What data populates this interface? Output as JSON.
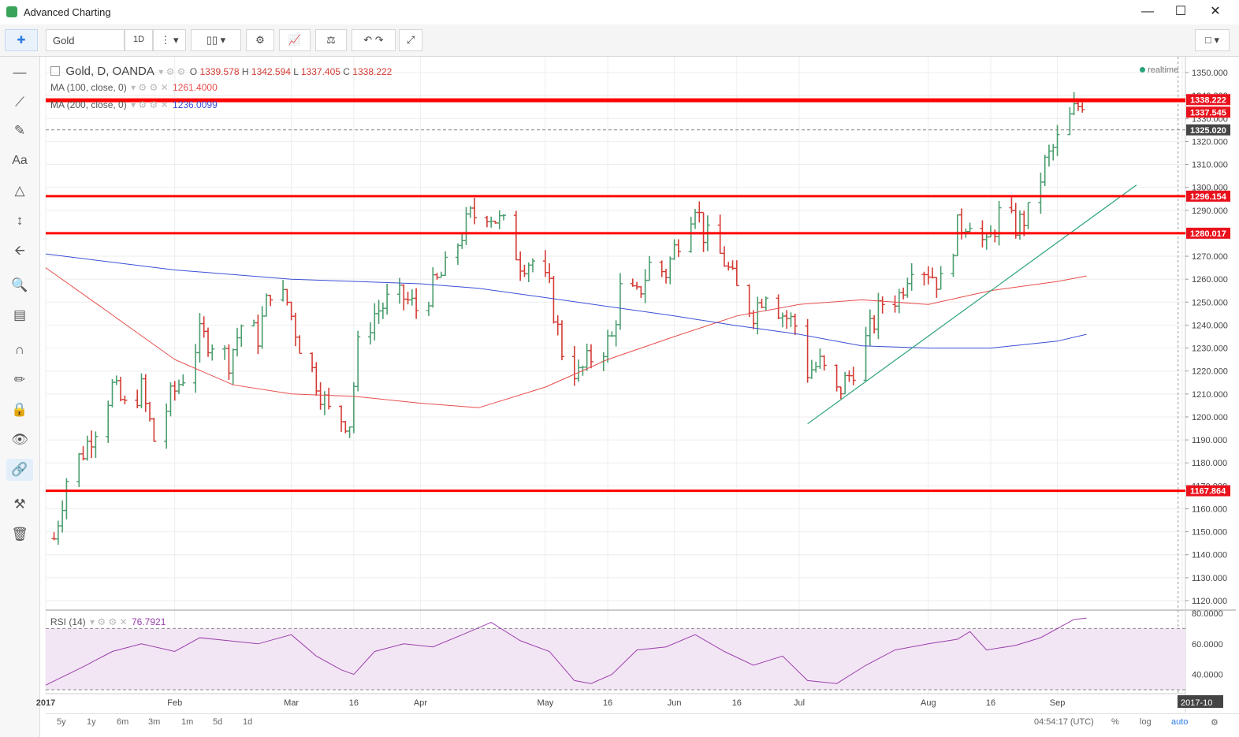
{
  "window": {
    "title": "Advanced Charting"
  },
  "toolbar": {
    "symbol": "Gold",
    "interval": "1D"
  },
  "legend": {
    "name": "Gold, D, OANDA",
    "o_label": "O",
    "o": "1339.578",
    "h_label": "H",
    "h": "1342.594",
    "l_label": "L",
    "l": "1337.405",
    "c_label": "C",
    "c": "1338.222",
    "realtime": "realtime",
    "ma100_label": "MA (100, close, 0)",
    "ma100_value": "1261.4000",
    "ma200_label": "MA (200, close, 0)",
    "ma200_value": "1236.0099",
    "rsi_label": "RSI (14)",
    "rsi_value": "76.7921"
  },
  "colors": {
    "up": "#4a9d6e",
    "down": "#d43b34",
    "ma100": "#e84c4c",
    "ma200": "#3b4fd6",
    "hline": "#ff0000",
    "trend": "#2aa37a",
    "rsi": "#9b3fae",
    "rsi_band": "#f3e6f4"
  },
  "chart_data": {
    "type": "candlestick",
    "price_axis": {
      "min": 1120,
      "max": 1350,
      "ticks": [
        "1350.000",
        "1340.000",
        "1330.000",
        "1320.000",
        "1310.000",
        "1300.000",
        "1290.000",
        "1280.000",
        "1270.000",
        "1260.000",
        "1250.000",
        "1240.000",
        "1230.000",
        "1220.000",
        "1210.000",
        "1200.000",
        "1190.000",
        "1180.000",
        "1170.000",
        "1160.000",
        "1150.000",
        "1140.000",
        "1130.000",
        "1120.000"
      ]
    },
    "time_axis": {
      "start": "2017-01-01",
      "end": "2017-10-01",
      "labels": [
        {
          "t": "2017-01-01",
          "text": "2017"
        },
        {
          "t": "2017-02-01",
          "text": "Feb"
        },
        {
          "t": "2017-03-01",
          "text": "Mar"
        },
        {
          "t": "2017-03-16",
          "text": "16"
        },
        {
          "t": "2017-04-01",
          "text": "Apr"
        },
        {
          "t": "2017-05-01",
          "text": "May"
        },
        {
          "t": "2017-05-16",
          "text": "16"
        },
        {
          "t": "2017-06-01",
          "text": "Jun"
        },
        {
          "t": "2017-06-16",
          "text": "16"
        },
        {
          "t": "2017-07-01",
          "text": "Jul"
        },
        {
          "t": "2017-08-01",
          "text": "Aug"
        },
        {
          "t": "2017-08-16",
          "text": "16"
        },
        {
          "t": "2017-09-01",
          "text": "Sep"
        },
        {
          "t": "2017-10-01",
          "text": "2017-10"
        }
      ]
    },
    "close_path": [
      [
        "2017-01-03",
        1147
      ],
      [
        "2017-01-06",
        1173
      ],
      [
        "2017-01-10",
        1185
      ],
      [
        "2017-01-13",
        1196
      ],
      [
        "2017-01-17",
        1213
      ],
      [
        "2017-01-20",
        1204
      ],
      [
        "2017-01-24",
        1212
      ],
      [
        "2017-01-27",
        1190
      ],
      [
        "2017-01-31",
        1208
      ],
      [
        "2017-02-03",
        1218
      ],
      [
        "2017-02-07",
        1235
      ],
      [
        "2017-02-10",
        1233
      ],
      [
        "2017-02-14",
        1225
      ],
      [
        "2017-02-17",
        1240
      ],
      [
        "2017-02-21",
        1235
      ],
      [
        "2017-02-24",
        1256
      ],
      [
        "2017-02-28",
        1250
      ],
      [
        "2017-03-03",
        1232
      ],
      [
        "2017-03-07",
        1216
      ],
      [
        "2017-03-10",
        1202
      ],
      [
        "2017-03-15",
        1198
      ],
      [
        "2017-03-17",
        1230
      ],
      [
        "2017-03-21",
        1245
      ],
      [
        "2017-03-24",
        1250
      ],
      [
        "2017-03-28",
        1252
      ],
      [
        "2017-03-31",
        1247
      ],
      [
        "2017-04-04",
        1256
      ],
      [
        "2017-04-07",
        1264
      ],
      [
        "2017-04-11",
        1280
      ],
      [
        "2017-04-13",
        1287
      ],
      [
        "2017-04-17",
        1290
      ],
      [
        "2017-04-21",
        1283
      ],
      [
        "2017-04-25",
        1268
      ],
      [
        "2017-04-28",
        1268
      ],
      [
        "2017-05-02",
        1255
      ],
      [
        "2017-05-05",
        1229
      ],
      [
        "2017-05-09",
        1218
      ],
      [
        "2017-05-12",
        1226
      ],
      [
        "2017-05-17",
        1234
      ],
      [
        "2017-05-19",
        1255
      ],
      [
        "2017-05-23",
        1252
      ],
      [
        "2017-05-26",
        1266
      ],
      [
        "2017-05-30",
        1263
      ],
      [
        "2017-06-02",
        1278
      ],
      [
        "2017-06-06",
        1294
      ],
      [
        "2017-06-08",
        1280
      ],
      [
        "2017-06-13",
        1268
      ],
      [
        "2017-06-16",
        1255
      ],
      [
        "2017-06-20",
        1246
      ],
      [
        "2017-06-23",
        1256
      ],
      [
        "2017-06-27",
        1245
      ],
      [
        "2017-06-30",
        1240
      ],
      [
        "2017-07-03",
        1220
      ],
      [
        "2017-07-06",
        1223
      ],
      [
        "2017-07-10",
        1210
      ],
      [
        "2017-07-13",
        1218
      ],
      [
        "2017-07-17",
        1233
      ],
      [
        "2017-07-21",
        1250
      ],
      [
        "2017-07-25",
        1253
      ],
      [
        "2017-07-28",
        1268
      ],
      [
        "2017-08-01",
        1264
      ],
      [
        "2017-08-04",
        1258
      ],
      [
        "2017-08-08",
        1282
      ],
      [
        "2017-08-11",
        1287
      ],
      [
        "2017-08-15",
        1273
      ],
      [
        "2017-08-18",
        1288
      ],
      [
        "2017-08-22",
        1283
      ],
      [
        "2017-08-25",
        1288
      ],
      [
        "2017-08-29",
        1310
      ],
      [
        "2017-09-01",
        1320
      ],
      [
        "2017-09-05",
        1333
      ],
      [
        "2017-09-07",
        1338
      ]
    ],
    "ma100": [
      [
        "2017-01-01",
        1265
      ],
      [
        "2017-01-15",
        1247
      ],
      [
        "2017-02-01",
        1225
      ],
      [
        "2017-02-15",
        1214
      ],
      [
        "2017-03-01",
        1210
      ],
      [
        "2017-03-16",
        1209
      ],
      [
        "2017-04-01",
        1206
      ],
      [
        "2017-04-15",
        1204
      ],
      [
        "2017-05-01",
        1213
      ],
      [
        "2017-05-16",
        1225
      ],
      [
        "2017-06-01",
        1235
      ],
      [
        "2017-06-16",
        1244
      ],
      [
        "2017-07-01",
        1249
      ],
      [
        "2017-07-16",
        1251
      ],
      [
        "2017-08-01",
        1249
      ],
      [
        "2017-08-16",
        1255
      ],
      [
        "2017-09-01",
        1259
      ],
      [
        "2017-09-08",
        1261.4
      ]
    ],
    "ma200": [
      [
        "2017-01-01",
        1271
      ],
      [
        "2017-02-01",
        1264
      ],
      [
        "2017-03-01",
        1260
      ],
      [
        "2017-04-01",
        1258
      ],
      [
        "2017-04-15",
        1256
      ],
      [
        "2017-05-01",
        1252
      ],
      [
        "2017-06-01",
        1244
      ],
      [
        "2017-06-15",
        1240
      ],
      [
        "2017-07-01",
        1236
      ],
      [
        "2017-07-16",
        1231
      ],
      [
        "2017-08-01",
        1230
      ],
      [
        "2017-08-16",
        1230
      ],
      [
        "2017-09-01",
        1233
      ],
      [
        "2017-09-08",
        1236
      ]
    ],
    "horizontal_lines": [
      {
        "price": 1338.222,
        "label": "1338.222",
        "style": "solid"
      },
      {
        "price": 1337.545,
        "label": "1337.545",
        "style": "solid"
      },
      {
        "price": 1325.02,
        "label": "1325.020",
        "style": "dashed"
      },
      {
        "price": 1296.154,
        "label": "1296.154",
        "style": "solid"
      },
      {
        "price": 1280.017,
        "label": "1280.017",
        "style": "solid"
      },
      {
        "price": 1167.864,
        "label": "1167.864",
        "style": "solid"
      }
    ],
    "trendline": [
      [
        "2017-07-03",
        1197
      ],
      [
        "2017-09-20",
        1301
      ]
    ],
    "rsi": {
      "label": "RSI (14)",
      "value": 76.7921,
      "ticks": [
        "80.0000",
        "60.0000",
        "40.0000"
      ],
      "axis": {
        "min": 30,
        "max": 80
      },
      "levels": [
        70,
        30
      ],
      "path": [
        [
          "2017-01-01",
          33
        ],
        [
          "2017-01-10",
          45
        ],
        [
          "2017-01-17",
          55
        ],
        [
          "2017-01-24",
          60
        ],
        [
          "2017-02-01",
          55
        ],
        [
          "2017-02-07",
          64
        ],
        [
          "2017-02-14",
          62
        ],
        [
          "2017-02-21",
          60
        ],
        [
          "2017-03-01",
          66
        ],
        [
          "2017-03-07",
          52
        ],
        [
          "2017-03-13",
          43
        ],
        [
          "2017-03-16",
          40
        ],
        [
          "2017-03-21",
          55
        ],
        [
          "2017-03-28",
          60
        ],
        [
          "2017-04-04",
          58
        ],
        [
          "2017-04-12",
          67
        ],
        [
          "2017-04-18",
          74
        ],
        [
          "2017-04-25",
          62
        ],
        [
          "2017-05-02",
          55
        ],
        [
          "2017-05-08",
          36
        ],
        [
          "2017-05-12",
          34
        ],
        [
          "2017-05-17",
          40
        ],
        [
          "2017-05-23",
          56
        ],
        [
          "2017-05-30",
          58
        ],
        [
          "2017-06-06",
          66
        ],
        [
          "2017-06-13",
          55
        ],
        [
          "2017-06-20",
          46
        ],
        [
          "2017-06-27",
          52
        ],
        [
          "2017-07-03",
          36
        ],
        [
          "2017-07-10",
          34
        ],
        [
          "2017-07-17",
          46
        ],
        [
          "2017-07-24",
          56
        ],
        [
          "2017-08-01",
          60
        ],
        [
          "2017-08-08",
          63
        ],
        [
          "2017-08-11",
          68
        ],
        [
          "2017-08-15",
          56
        ],
        [
          "2017-08-22",
          59
        ],
        [
          "2017-08-28",
          64
        ],
        [
          "2017-09-01",
          70
        ],
        [
          "2017-09-05",
          76
        ],
        [
          "2017-09-08",
          76.8
        ]
      ]
    }
  },
  "bottombar": {
    "ranges": [
      "5y",
      "1y",
      "6m",
      "3m",
      "1m",
      "5d",
      "1d"
    ],
    "clock": "04:54:17 (UTC)",
    "percent": "%",
    "log": "log",
    "auto": "auto"
  }
}
